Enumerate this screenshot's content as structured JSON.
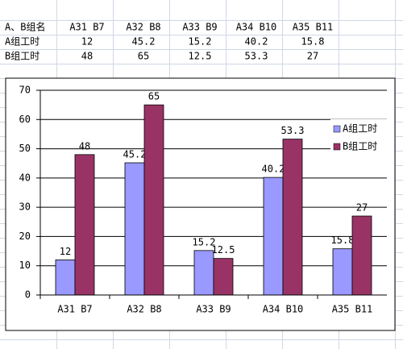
{
  "table": {
    "corner": "A、B组名"
  },
  "chart_data": {
    "type": "bar",
    "categories": [
      "A31 B7",
      "A32 B8",
      "A33 B9",
      "A34 B10",
      "A35 B11"
    ],
    "series": [
      {
        "name": "A组工时",
        "color": "#9999ff",
        "values": [
          12,
          45.2,
          15.2,
          40.2,
          15.8
        ]
      },
      {
        "name": "B组工时",
        "color": "#993366",
        "values": [
          48,
          65,
          12.5,
          53.3,
          27
        ]
      }
    ],
    "ylim": [
      0,
      70
    ],
    "yticks": [
      0,
      10,
      20,
      30,
      40,
      50,
      60,
      70
    ],
    "grid": true,
    "legend": "right"
  }
}
